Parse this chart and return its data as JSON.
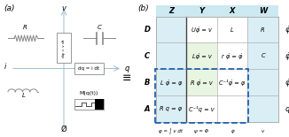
{
  "title_a": "(a)",
  "title_b": "(b)",
  "col_headers": [
    "Z",
    "Y",
    "X",
    "W"
  ],
  "row_headers": [
    "D",
    "C",
    "B",
    "A"
  ],
  "right_labels": [
    "φ̇",
    "φ̇",
    "φ̇",
    "q"
  ],
  "bottom_labels": [
    "φ = ∫ v dt",
    "ψ = Φ",
    "φ̇",
    "v"
  ],
  "cells": [
    [
      "",
      "Uφ̇ = v",
      "L",
      "R"
    ],
    [
      "",
      "Lφ̇ = v",
      "r φ̇ = φ̇",
      "C"
    ],
    [
      "L φ̇ = φ",
      "R φ̇ = v",
      "C⁻¹φ̇ = φ",
      ""
    ],
    [
      "R q = φ",
      "C⁻¹q = v",
      "",
      ""
    ]
  ],
  "green_fill": "#e8f5e0",
  "grid_color": "#b0b0b0",
  "dashed_color": "#2060b0",
  "axis_color": "#a0bcd0"
}
